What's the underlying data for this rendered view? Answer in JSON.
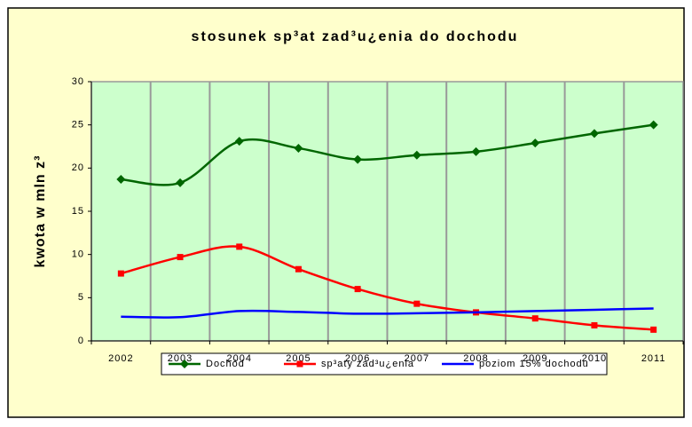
{
  "chart_data": {
    "type": "line",
    "title": "stosunek sp³at zad³u¿enia do dochodu",
    "y_label": "kwota w mln z³",
    "categories": [
      "2002",
      "2003",
      "2004",
      "2005",
      "2006",
      "2007",
      "2008",
      "2009",
      "2010",
      "2011"
    ],
    "series": [
      {
        "name": "Dochód",
        "color": "#006600",
        "marker": "diamond",
        "values": [
          18.7,
          18.3,
          23.1,
          22.3,
          21.0,
          21.5,
          21.9,
          22.9,
          24.0,
          25.0
        ]
      },
      {
        "name": "sp³aty zad³u¿enia",
        "color": "#ff0000",
        "marker": "square",
        "values": [
          7.8,
          9.7,
          10.9,
          8.3,
          6.0,
          4.3,
          3.3,
          2.6,
          1.8,
          1.3
        ]
      },
      {
        "name": "poziom 15% dochodu",
        "color": "#0000ff",
        "marker": "none",
        "values": [
          2.8,
          2.75,
          3.45,
          3.35,
          3.15,
          3.2,
          3.3,
          3.45,
          3.6,
          3.75
        ]
      }
    ],
    "ylim": [
      0,
      30
    ],
    "yticks": [
      0,
      5,
      10,
      15,
      20,
      25,
      30
    ],
    "grid": "x",
    "legend": "bottom"
  }
}
